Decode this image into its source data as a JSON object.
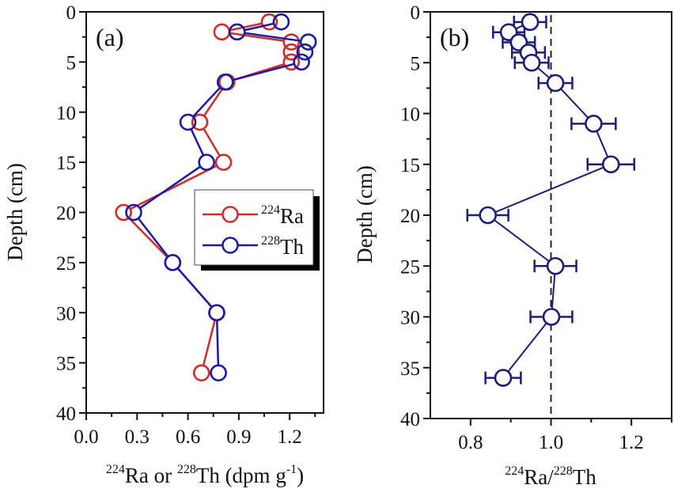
{
  "chart_data": [
    {
      "type": "line",
      "panel_label": "(a)",
      "title": "",
      "xlabel_parts": [
        {
          "sup": "224",
          "text": "Ra or "
        },
        {
          "sup": "228",
          "text": "Th (dpm g"
        },
        {
          "sup": "-1",
          "text": ")"
        }
      ],
      "xlabel": "224Ra or 228Th (dpm g-1)",
      "ylabel": "Depth (cm)",
      "xlim": [
        0.0,
        1.4
      ],
      "ylim": [
        0,
        40
      ],
      "y_inverted": true,
      "xticks": [
        "0.0",
        "0.3",
        "0.6",
        "0.9",
        "1.2"
      ],
      "xtick_values": [
        0.0,
        0.3,
        0.6,
        0.9,
        1.2
      ],
      "xminor_values": [
        0.15,
        0.45,
        0.75,
        1.05,
        1.35
      ],
      "yticks": [
        "0",
        "5",
        "10",
        "15",
        "20",
        "25",
        "30",
        "35",
        "40"
      ],
      "ytick_values": [
        0,
        5,
        10,
        15,
        20,
        25,
        30,
        35,
        40
      ],
      "yminor_values": [
        2.5,
        7.5,
        12.5,
        17.5,
        22.5,
        27.5,
        32.5,
        37.5
      ],
      "grid": false,
      "legend_position": "center-right",
      "series": [
        {
          "name": "224Ra",
          "legend_sup": "224",
          "legend_text": "Ra",
          "color": "#d42a2a",
          "marker": "open-circle",
          "points": [
            {
              "x": 1.08,
              "y": 1
            },
            {
              "x": 0.8,
              "y": 2
            },
            {
              "x": 1.21,
              "y": 3
            },
            {
              "x": 1.21,
              "y": 4
            },
            {
              "x": 1.21,
              "y": 5
            },
            {
              "x": 0.83,
              "y": 7
            },
            {
              "x": 0.67,
              "y": 11
            },
            {
              "x": 0.81,
              "y": 15
            },
            {
              "x": 0.22,
              "y": 20
            },
            {
              "x": 0.51,
              "y": 25
            },
            {
              "x": 0.77,
              "y": 30
            },
            {
              "x": 0.68,
              "y": 36
            }
          ]
        },
        {
          "name": "228Th",
          "legend_sup": "228",
          "legend_text": "Th",
          "color": "#1a1aa8",
          "marker": "open-circle",
          "points": [
            {
              "x": 1.15,
              "y": 1
            },
            {
              "x": 0.89,
              "y": 2
            },
            {
              "x": 1.31,
              "y": 3
            },
            {
              "x": 1.29,
              "y": 4
            },
            {
              "x": 1.27,
              "y": 5
            },
            {
              "x": 0.82,
              "y": 7
            },
            {
              "x": 0.6,
              "y": 11
            },
            {
              "x": 0.71,
              "y": 15
            },
            {
              "x": 0.28,
              "y": 20
            },
            {
              "x": 0.51,
              "y": 25
            },
            {
              "x": 0.77,
              "y": 30
            },
            {
              "x": 0.78,
              "y": 36
            }
          ]
        }
      ]
    },
    {
      "type": "scatter",
      "panel_label": "(b)",
      "title": "",
      "xlabel_parts": [
        {
          "sup": "224",
          "text": "Ra/"
        },
        {
          "sup": "228",
          "text": "Th"
        }
      ],
      "xlabel": "224Ra/228Th",
      "ylabel": "Depth (cm)",
      "xlim": [
        0.7,
        1.3
      ],
      "ylim": [
        0,
        40
      ],
      "y_inverted": true,
      "xticks": [
        "0.8",
        "1.0",
        "1.2"
      ],
      "xtick_values": [
        0.8,
        1.0,
        1.2
      ],
      "xminor_values": [
        0.9,
        1.1,
        1.3
      ],
      "yticks": [
        "0",
        "5",
        "10",
        "15",
        "20",
        "25",
        "30",
        "35",
        "40"
      ],
      "ytick_values": [
        0,
        5,
        10,
        15,
        20,
        25,
        30,
        35,
        40
      ],
      "yminor_values": [
        2.5,
        7.5,
        12.5,
        17.5,
        22.5,
        27.5,
        32.5,
        37.5
      ],
      "grid": false,
      "reference_line": {
        "x": 1.0,
        "style": "dashed",
        "color": "#222222"
      },
      "series": [
        {
          "name": "224Ra/228Th",
          "color": "#1c1c7a",
          "marker": "open-circle",
          "connected": true,
          "points": [
            {
              "x": 0.948,
              "y": 1,
              "xerr": 0.04
            },
            {
              "x": 0.895,
              "y": 2,
              "xerr": 0.039
            },
            {
              "x": 0.92,
              "y": 3,
              "xerr": 0.04
            },
            {
              "x": 0.944,
              "y": 4,
              "xerr": 0.041
            },
            {
              "x": 0.952,
              "y": 5,
              "xerr": 0.042
            },
            {
              "x": 1.011,
              "y": 7,
              "xerr": 0.042
            },
            {
              "x": 1.106,
              "y": 11,
              "xerr": 0.055
            },
            {
              "x": 1.149,
              "y": 15,
              "xerr": 0.058
            },
            {
              "x": 0.843,
              "y": 20,
              "xerr": 0.051
            },
            {
              "x": 1.011,
              "y": 25,
              "xerr": 0.052
            },
            {
              "x": 1.001,
              "y": 30,
              "xerr": 0.052
            },
            {
              "x": 0.881,
              "y": 36,
              "xerr": 0.044
            }
          ]
        }
      ]
    }
  ]
}
